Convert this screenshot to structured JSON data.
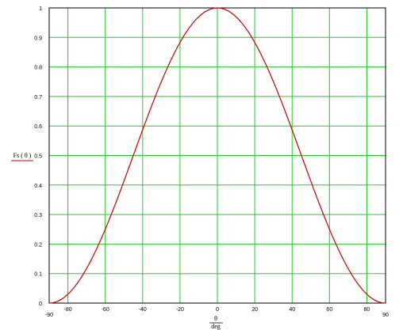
{
  "chart_data": {
    "type": "line",
    "xlabel_top": "θ",
    "xlabel_bottom": "deg",
    "ylabel": "Fs ( θ )",
    "x_range": [
      -90,
      90
    ],
    "y_range": [
      0,
      1
    ],
    "x_ticks": [
      "-90",
      "-80",
      "-60",
      "-40",
      "-20",
      "0",
      "20",
      "40",
      "60",
      "80",
      "90"
    ],
    "x_tick_values": [
      -90,
      -80,
      -60,
      -40,
      -20,
      0,
      20,
      40,
      60,
      80,
      90
    ],
    "y_ticks": [
      "0",
      "0.1",
      "0.2",
      "0.3",
      "0.4",
      "0.5",
      "0.6",
      "0.7",
      "0.8",
      "0.9",
      "1"
    ],
    "y_tick_values": [
      0,
      0.1,
      0.2,
      0.3,
      0.4,
      0.5,
      0.6,
      0.7,
      0.8,
      0.9,
      1
    ],
    "y_top_label": "1",
    "y_bottom_label": "0",
    "grid": true,
    "series": [
      {
        "color": "#cc0000",
        "x": [
          -90,
          -80,
          -70,
          -60,
          -50,
          -40,
          -30,
          -20,
          -10,
          0,
          10,
          20,
          30,
          40,
          50,
          60,
          70,
          80,
          90
        ],
        "y": [
          0,
          0.03,
          0.117,
          0.25,
          0.413,
          0.587,
          0.75,
          0.883,
          0.97,
          1,
          0.97,
          0.883,
          0.75,
          0.587,
          0.413,
          0.25,
          0.117,
          0.03,
          0
        ]
      }
    ],
    "colors": {
      "grid": "#22cc22",
      "frame": "#000000",
      "curve": "#cc0000",
      "ylabel_underline": "#cc0000"
    }
  }
}
